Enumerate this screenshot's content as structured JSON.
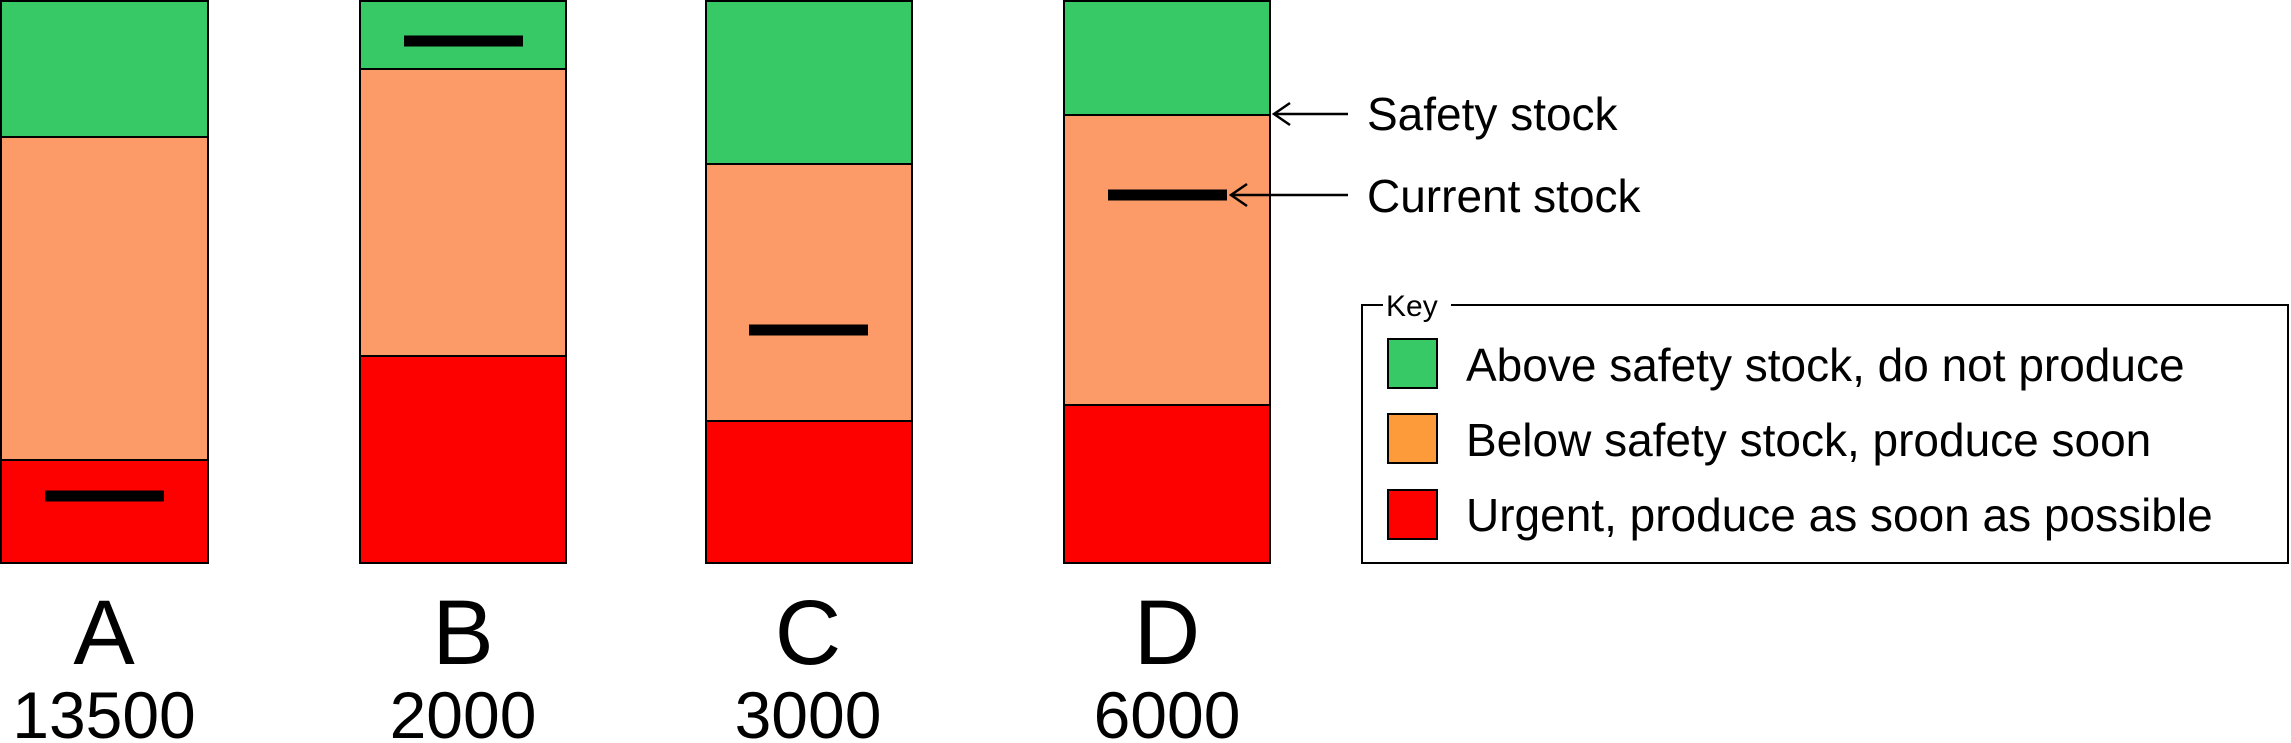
{
  "colors": {
    "above": "#36c966",
    "below": "#fd9b68",
    "urgent": "#fc0100",
    "key_below_swatch": "#fd9a3a",
    "outline": "#000000"
  },
  "bars": [
    {
      "label": "A",
      "value": "13500"
    },
    {
      "label": "B",
      "value": "2000"
    },
    {
      "label": "C",
      "value": "3000"
    },
    {
      "label": "D",
      "value": "6000"
    }
  ],
  "callouts": {
    "safety_stock": "Safety stock",
    "current_stock": "Current stock"
  },
  "key": {
    "title": "Key",
    "items": [
      {
        "label": "Above safety stock, do not produce",
        "color": "#36c966"
      },
      {
        "label": "Below safety stock, produce soon",
        "color": "#fd9a3a"
      },
      {
        "label": "Urgent, produce as soon as possible",
        "color": "#fc0100"
      }
    ]
  }
}
